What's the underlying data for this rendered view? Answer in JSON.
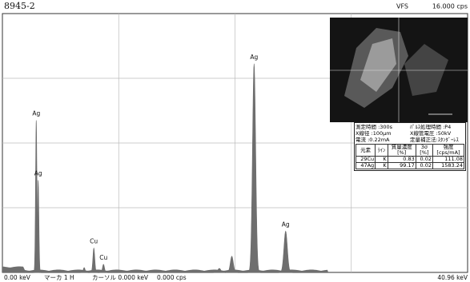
{
  "header": {
    "sample": "8945-2",
    "scale_mode": "VFS",
    "full_scale": "16.000 cps"
  },
  "spectrum": {
    "xlim": [
      0,
      40.96
    ],
    "ylim": [
      0,
      16000
    ],
    "grid_divisions": 4,
    "color": "#6e6e6e",
    "peaks": [
      {
        "label": "Ag",
        "x": 2.98,
        "y": 9400
      },
      {
        "label": "Ag",
        "x": 3.15,
        "y": 5700
      },
      {
        "label": null,
        "x": 7.2,
        "y": 300
      },
      {
        "label": "Cu",
        "x": 8.05,
        "y": 1500
      },
      {
        "label": "Cu",
        "x": 8.9,
        "y": 500
      },
      {
        "label": null,
        "x": 19.1,
        "y": 250
      },
      {
        "label": null,
        "x": 20.2,
        "y": 1000
      },
      {
        "label": "Ag",
        "x": 22.16,
        "y": 12900
      },
      {
        "label": "Ag",
        "x": 24.94,
        "y": 2550
      }
    ]
  },
  "status_bar": {
    "left": "0.00 keV",
    "marker": "マーカ 1 H",
    "cursor": "カーソル 0.000 keV",
    "cursor_cps": "0.000 cps",
    "right": "40.96 keV"
  },
  "conditions": [
    "測定時間 :300s",
    "ﾊﾟﾙｽ処理時間 :P4",
    "X線径 :100μm",
    "X線管電圧 :50kV",
    "電流 :0.22mA",
    "定量補正法:ｽﾀﾝﾀﾞｰﾚｽ"
  ],
  "results": {
    "header": [
      {
        "name": "元素"
      },
      {
        "name": "ﾗｲﾝ"
      },
      {
        "name": "質量濃度",
        "unit": "[%]"
      },
      {
        "name": "3σ",
        "unit": "[%]"
      },
      {
        "name": "強度",
        "unit": "[cps/mA]"
      }
    ],
    "rows": [
      [
        "29Cu",
        "K",
        "0.83",
        "0.02",
        "111.08"
      ],
      [
        "47Ag",
        "K",
        "99.17",
        "0.02",
        "1583.24"
      ]
    ]
  }
}
